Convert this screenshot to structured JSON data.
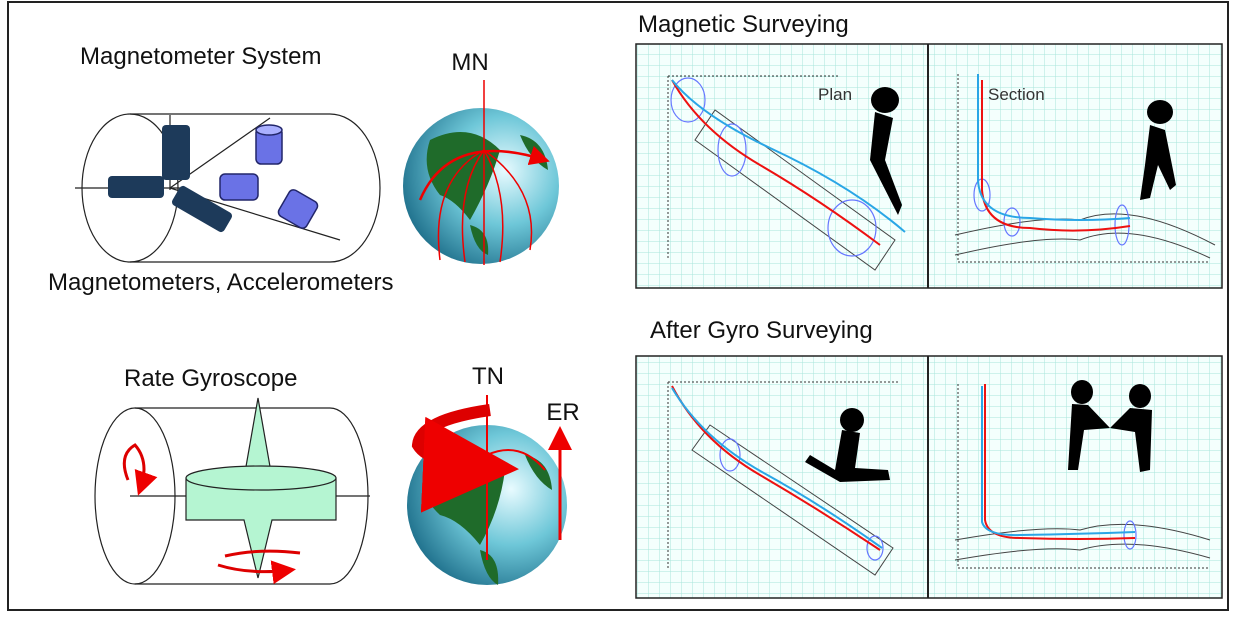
{
  "left": {
    "magnetometer": {
      "title": "Magnetometer System",
      "north_label": "MN",
      "caption": "Magnetometers, Accelerometers"
    },
    "gyro": {
      "title": "Rate Gyroscope",
      "north_label": "TN",
      "rotation_label": "ER"
    }
  },
  "right": {
    "magnetic": {
      "title": "Magnetic Surveying",
      "plan_label": "Plan",
      "section_label": "Section"
    },
    "gyro": {
      "title": "After Gyro Surveying"
    }
  }
}
